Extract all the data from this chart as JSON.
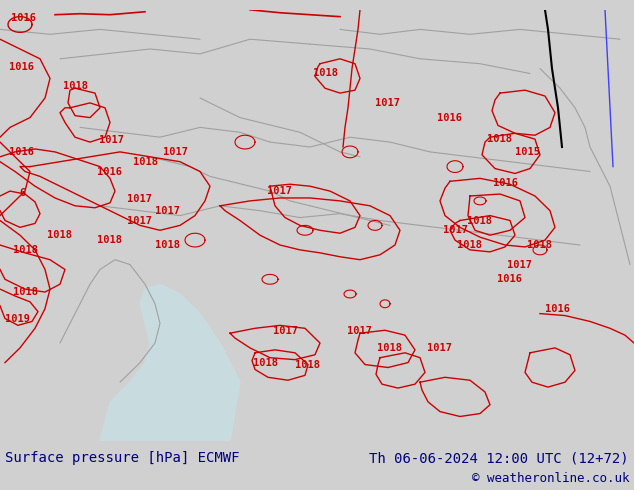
{
  "title_left": "Surface pressure [hPa] ECMWF",
  "title_right": "Th 06-06-2024 12:00 UTC (12+72)",
  "copyright": "© weatheronline.co.uk",
  "footer_text_color": "#000080",
  "footer_font_size": 10,
  "copyright_font_size": 9,
  "fig_width": 6.34,
  "fig_height": 4.9,
  "dpi": 100,
  "red_color": "#cc0000",
  "border_color": "#a0a0a0",
  "map_bg": "#b8e878",
  "footer_bg": "#c8c8c8",
  "fig_bg": "#d0d0d0",
  "water_color": "#c8dce0",
  "black_line_color": "#000000",
  "blue_line_color": "#4040ff"
}
